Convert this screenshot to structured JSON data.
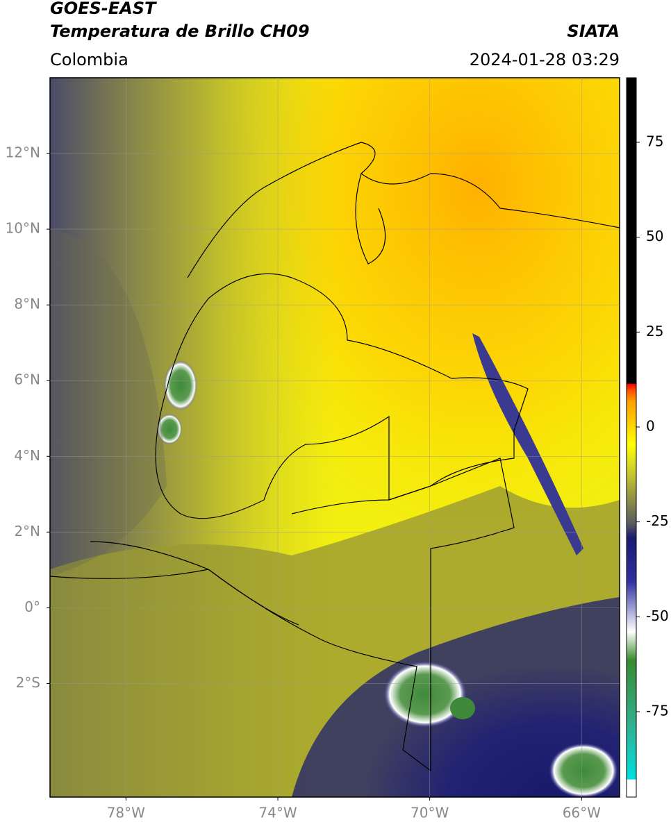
{
  "header": {
    "title": "GOES-EAST",
    "subtitle": "Temperatura de Brillo CH09",
    "source": "SIATA",
    "region": "Colombia",
    "datetime": "2024-01-28 03:29"
  },
  "map": {
    "xlim": [
      -80,
      -65
    ],
    "ylim": [
      -5,
      14
    ],
    "grid": true,
    "xticks": [
      {
        "value": -78,
        "label": "78°W"
      },
      {
        "value": -74,
        "label": "74°W"
      },
      {
        "value": -70,
        "label": "70°W"
      },
      {
        "value": -66,
        "label": "66°W"
      }
    ],
    "yticks": [
      {
        "value": 12,
        "label": "12°N"
      },
      {
        "value": 10,
        "label": "10°N"
      },
      {
        "value": 8,
        "label": "8°N"
      },
      {
        "value": 6,
        "label": "6°N"
      },
      {
        "value": 4,
        "label": "4°N"
      },
      {
        "value": 2,
        "label": "2°N"
      },
      {
        "value": 0,
        "label": "0°"
      },
      {
        "value": -2,
        "label": "2°S"
      }
    ]
  },
  "colorbar": {
    "lim": [
      -97.5,
      92
    ],
    "ticks": [
      75,
      50,
      25,
      0,
      -25,
      -50,
      -75
    ]
  }
}
